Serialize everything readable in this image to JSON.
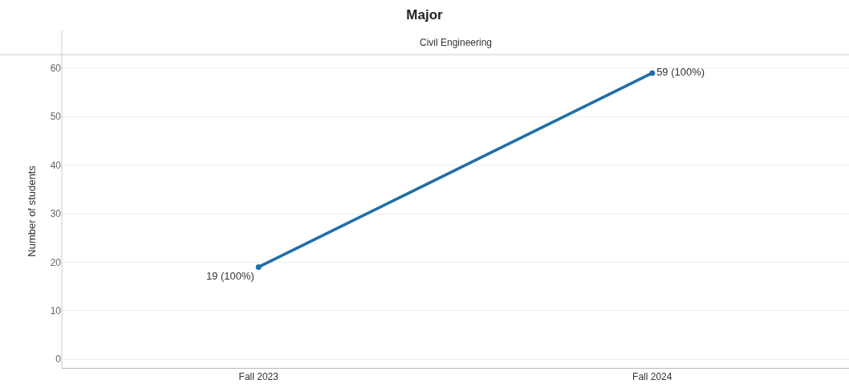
{
  "chart_data": {
    "type": "line",
    "title": "Major",
    "subtitle": "Civil Engineering",
    "ylabel": "Number of students",
    "categories": [
      "Fall 2023",
      "Fall 2024"
    ],
    "series": [
      {
        "color": "#1f6fa8",
        "values": [
          19,
          59
        ],
        "value_labels": [
          "19 (100%)",
          "59 (100%)"
        ]
      }
    ],
    "ylim": [
      -1.8,
      62.8
    ],
    "yticks": [
      0,
      10,
      20,
      30,
      40,
      50,
      60
    ],
    "grid": "y",
    "marker": "circle"
  }
}
